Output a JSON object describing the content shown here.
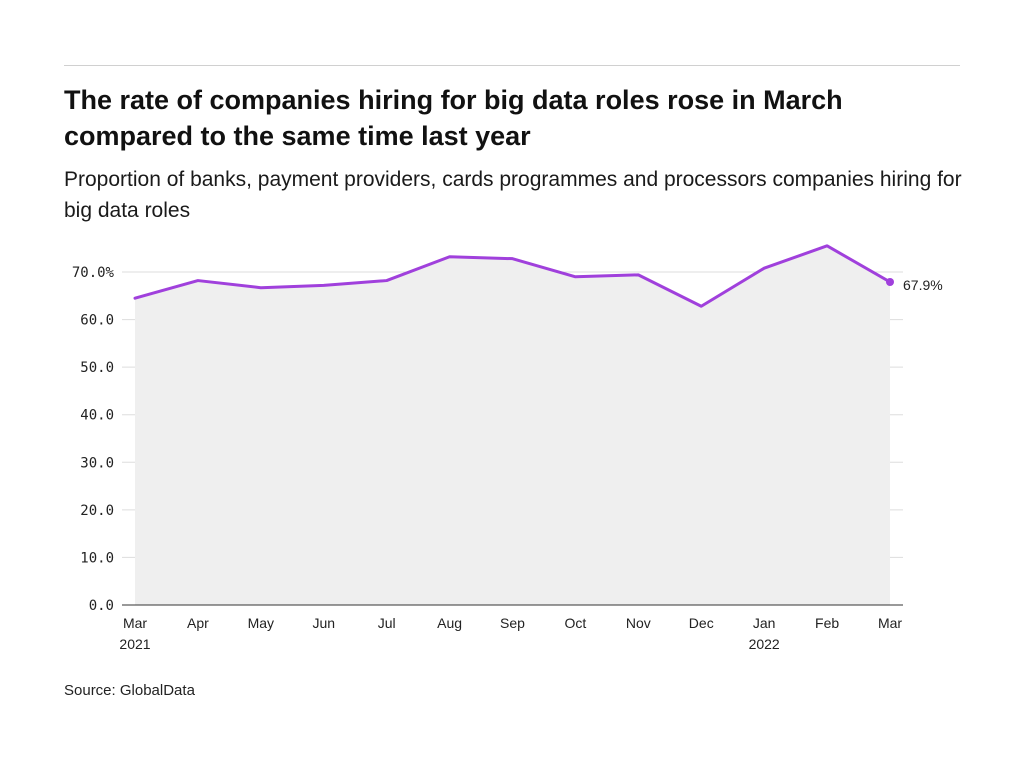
{
  "title": "The rate of companies hiring for big data roles rose in March compared to the same time last year",
  "subtitle": "Proportion of banks, payment providers, cards programmes and processors companies hiring for big data roles",
  "source": "Source: GlobalData",
  "colors": {
    "line": "#a040dc",
    "area": "#efefef",
    "grid": "#dddddd",
    "axis": "#333333"
  },
  "chart_data": {
    "type": "area",
    "categories": [
      "Mar\n2021",
      "Apr",
      "May",
      "Jun",
      "Jul",
      "Aug",
      "Sep",
      "Oct",
      "Nov",
      "Dec",
      "Jan\n2022",
      "Feb",
      "Mar"
    ],
    "values": [
      64.5,
      68.2,
      66.7,
      67.2,
      68.2,
      73.2,
      72.8,
      69.0,
      69.4,
      62.8,
      70.8,
      75.5,
      67.9
    ],
    "ylim": [
      0,
      70
    ],
    "yticks": [
      "0.0",
      "10.0",
      "20.0",
      "30.0",
      "40.0",
      "50.0",
      "60.0",
      "70.0%"
    ],
    "ytick_values": [
      0,
      10,
      20,
      30,
      40,
      50,
      60,
      70
    ],
    "end_label": "67.9%",
    "xlabel": "",
    "ylabel": "",
    "grid": true
  }
}
